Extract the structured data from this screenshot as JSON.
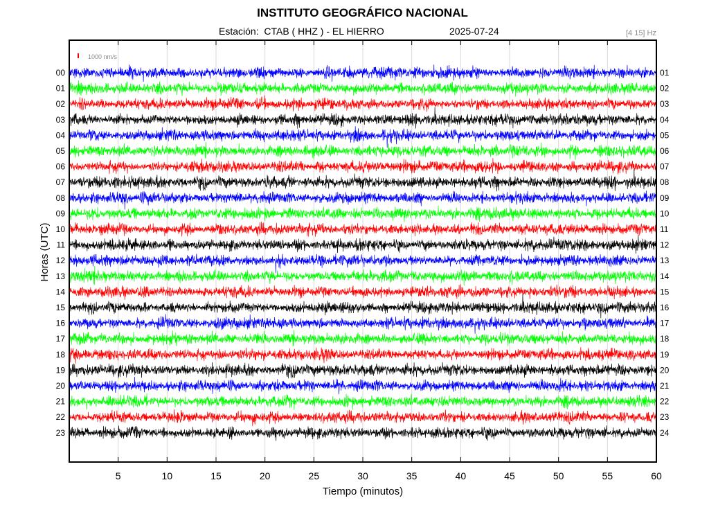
{
  "header": {
    "title": "INSTITUTO GEOGRÁFICO NACIONAL",
    "station": "Estación:  CTAB ( HHZ ) - EL HIERRO",
    "date": "2025-07-24",
    "filter": "[4 15] Hz"
  },
  "chart_data": {
    "type": "line",
    "title": "INSTITUTO GEOGRÁFICO NACIONAL",
    "xlabel": "Tiempo (minutos)",
    "ylabel": "Horas (UTC)",
    "xlim": [
      0,
      60
    ],
    "x_ticks": [
      5,
      10,
      15,
      20,
      25,
      30,
      35,
      40,
      45,
      50,
      55,
      60
    ],
    "scale_bar": "1000 nm/s",
    "left_hour_labels": [
      "00",
      "01",
      "02",
      "03",
      "04",
      "05",
      "06",
      "07",
      "08",
      "09",
      "10",
      "11",
      "12",
      "13",
      "14",
      "15",
      "16",
      "17",
      "18",
      "19",
      "20",
      "21",
      "22",
      "23"
    ],
    "right_hour_labels": [
      "01",
      "02",
      "03",
      "04",
      "05",
      "06",
      "07",
      "08",
      "09",
      "10",
      "11",
      "12",
      "13",
      "14",
      "15",
      "16",
      "17",
      "18",
      "19",
      "20",
      "21",
      "22",
      "23",
      "24"
    ],
    "trace_colors": [
      "#0000ff",
      "#00ff00",
      "#ff0000",
      "#000000"
    ],
    "grid": true
  }
}
